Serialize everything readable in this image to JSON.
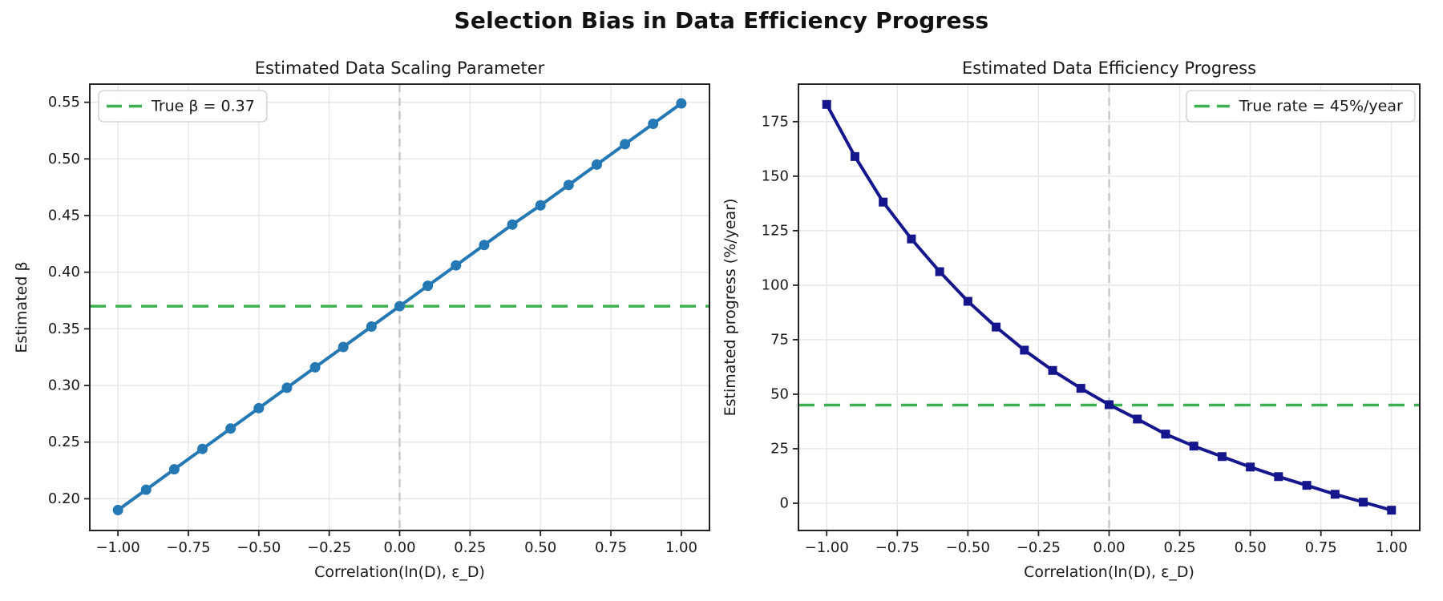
{
  "figure": {
    "title": "Selection Bias in Data Efficiency Progress",
    "background": "#ffffff",
    "text_color": "#1a1a1a",
    "grid_color": "#e6e6e6",
    "spine_color": "#222222"
  },
  "chart_data": [
    {
      "id": "scaling-parameter",
      "type": "line",
      "title": "Estimated Data Scaling Parameter",
      "xlabel": "Correlation(ln(D), ε_D)",
      "ylabel": "Estimated β",
      "xlim": [
        -1.1,
        1.1
      ],
      "ylim": [
        0.172,
        0.566
      ],
      "grid": true,
      "xticks": [
        -1.0,
        -0.75,
        -0.5,
        -0.25,
        0.0,
        0.25,
        0.5,
        0.75,
        1.0
      ],
      "xtick_labels": [
        "−1.00",
        "−0.75",
        "−0.50",
        "−0.25",
        "0.00",
        "0.25",
        "0.50",
        "0.75",
        "1.00"
      ],
      "yticks": [
        0.2,
        0.25,
        0.3,
        0.35,
        0.4,
        0.45,
        0.5,
        0.55
      ],
      "ytick_labels": [
        "0.20",
        "0.25",
        "0.30",
        "0.35",
        "0.40",
        "0.45",
        "0.50",
        "0.55"
      ],
      "x": [
        -1.0,
        -0.9,
        -0.8,
        -0.7,
        -0.6,
        -0.5,
        -0.4,
        -0.3,
        -0.2,
        -0.1,
        0.0,
        0.1,
        0.2,
        0.3,
        0.4,
        0.5,
        0.6,
        0.7,
        0.8,
        0.9,
        1.0
      ],
      "series": [
        {
          "name": "estimated-beta",
          "color": "#2478b4",
          "marker": "circle",
          "values": [
            0.19,
            0.208,
            0.226,
            0.244,
            0.262,
            0.28,
            0.298,
            0.316,
            0.334,
            0.352,
            0.37,
            0.388,
            0.406,
            0.424,
            0.442,
            0.459,
            0.477,
            0.495,
            0.513,
            0.531,
            0.549
          ]
        }
      ],
      "reference_lines": [
        {
          "name": "true-beta-line",
          "orientation": "h",
          "value": 0.37,
          "color": "#3cb04f",
          "style": "dashed"
        },
        {
          "name": "zero-correlation-line",
          "orientation": "v",
          "value": 0.0,
          "color": "#c8c8c8",
          "style": "dashed"
        }
      ],
      "legend": {
        "position": "top-left",
        "entries": [
          {
            "label": "True β = 0.37",
            "color": "#3cb04f",
            "style": "dashed"
          }
        ]
      }
    },
    {
      "id": "efficiency-progress",
      "type": "line",
      "title": "Estimated Data Efficiency Progress",
      "xlabel": "Correlation(ln(D), ε_D)",
      "ylabel": "Estimated progress (%/year)",
      "xlim": [
        -1.1,
        1.1
      ],
      "ylim": [
        -12.5,
        192.2
      ],
      "grid": true,
      "xticks": [
        -1.0,
        -0.75,
        -0.5,
        -0.25,
        0.0,
        0.25,
        0.5,
        0.75,
        1.0
      ],
      "xtick_labels": [
        "−1.00",
        "−0.75",
        "−0.50",
        "−0.25",
        "0.00",
        "0.25",
        "0.50",
        "0.75",
        "1.00"
      ],
      "yticks": [
        0,
        25,
        50,
        75,
        100,
        125,
        150,
        175
      ],
      "ytick_labels": [
        "0",
        "25",
        "50",
        "75",
        "100",
        "125",
        "150",
        "175"
      ],
      "x": [
        -1.0,
        -0.9,
        -0.8,
        -0.7,
        -0.6,
        -0.5,
        -0.4,
        -0.3,
        -0.2,
        -0.1,
        0.0,
        0.1,
        0.2,
        0.3,
        0.4,
        0.5,
        0.6,
        0.7,
        0.8,
        0.9,
        1.0
      ],
      "series": [
        {
          "name": "estimated-progress",
          "color": "#15158c",
          "marker": "square",
          "values": [
            182.9,
            159.0,
            138.1,
            121.2,
            106.2,
            92.6,
            80.8,
            70.2,
            60.9,
            52.7,
            45.2,
            38.6,
            31.7,
            26.2,
            21.4,
            16.6,
            12.2,
            8.2,
            4.1,
            0.5,
            -3.2
          ]
        }
      ],
      "reference_lines": [
        {
          "name": "true-rate-line",
          "orientation": "h",
          "value": 45,
          "color": "#3cb04f",
          "style": "dashed"
        },
        {
          "name": "zero-correlation-line",
          "orientation": "v",
          "value": 0.0,
          "color": "#c8c8c8",
          "style": "dashed"
        }
      ],
      "legend": {
        "position": "top-right",
        "entries": [
          {
            "label": "True rate = 45%/year",
            "color": "#3cb04f",
            "style": "dashed"
          }
        ]
      }
    }
  ]
}
